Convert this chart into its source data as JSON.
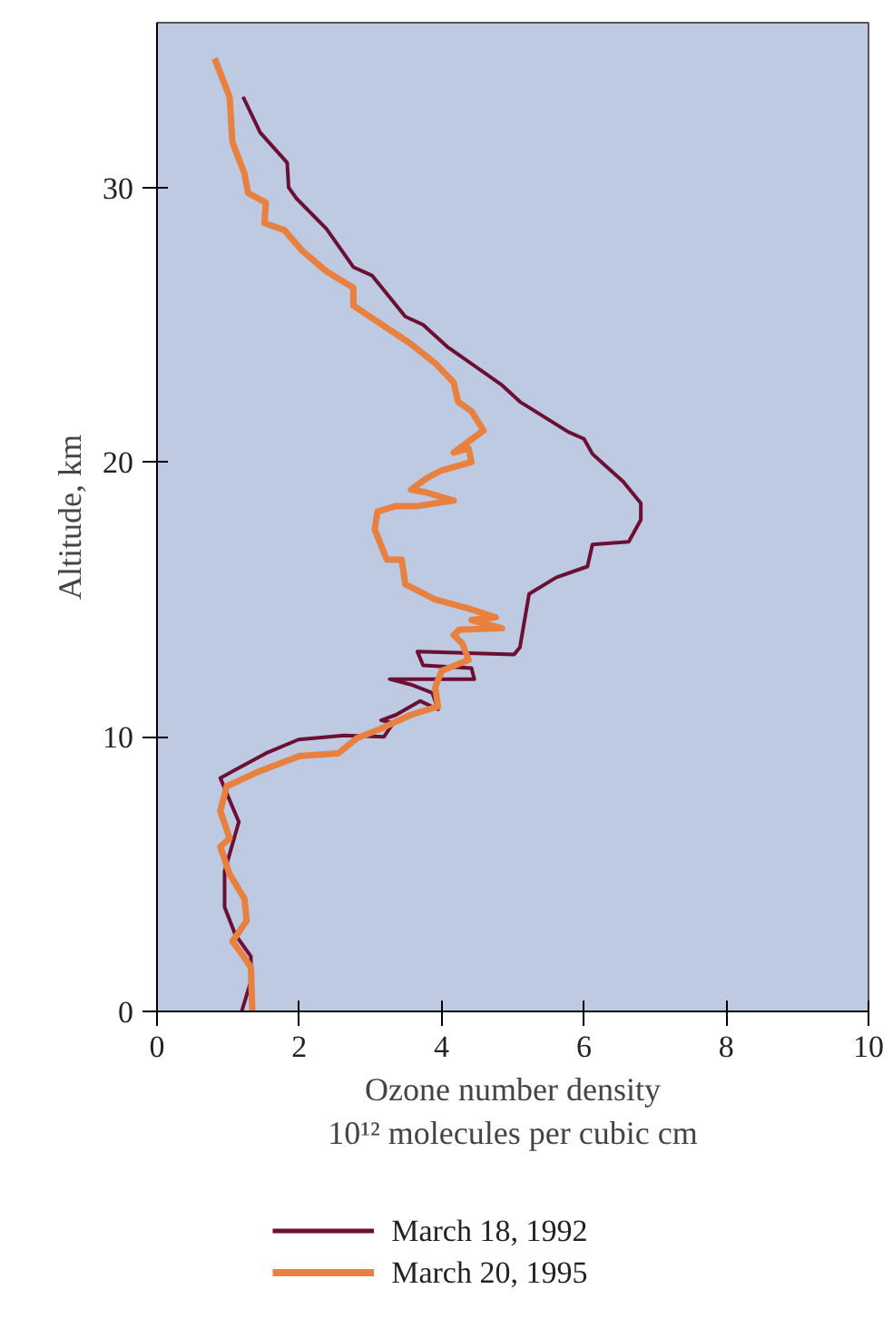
{
  "chart_data": {
    "type": "line",
    "xlabel": "Ozone number density\n10¹² molecules per cubic cm",
    "ylabel": "Altitude, km",
    "xlim": [
      0,
      10
    ],
    "ylim": [
      0,
      36
    ],
    "xticks": [
      0,
      2,
      4,
      6,
      8,
      10
    ],
    "yticks": [
      0,
      10,
      20,
      30
    ],
    "grid": false,
    "legend": "bottom",
    "marker": "none",
    "line_style": "solid",
    "series": [
      {
        "name": "March 18, 1992",
        "color": "#6b0f35",
        "x": [
          1.19,
          1.32,
          1.32,
          1.1,
          0.95,
          0.95,
          1.15,
          0.89,
          1.53,
          1.99,
          2.63,
          3.19,
          3.32,
          3.15,
          3.36,
          3.7,
          3.95,
          3.87,
          3.57,
          3.27,
          4.46,
          4.42,
          3.74,
          3.66,
          5.02,
          5.1,
          5.23,
          5.61,
          6.05,
          6.12,
          6.63,
          6.8,
          6.8,
          6.55,
          6.29,
          6.12,
          6.0,
          5.78,
          5.1,
          4.85,
          4.08,
          3.74,
          3.49,
          3.02,
          2.76,
          2.38,
          1.96,
          1.85,
          1.83,
          1.45,
          1.21
        ],
        "values": [
          0,
          1.1,
          2.0,
          2.8,
          3.8,
          5.1,
          6.9,
          8.5,
          9.4,
          9.9,
          10.05,
          10.0,
          10.5,
          10.6,
          10.8,
          11.3,
          11.0,
          11.6,
          11.9,
          12.1,
          12.1,
          12.5,
          12.6,
          13.1,
          13.0,
          13.25,
          15.2,
          15.8,
          16.2,
          17.0,
          17.1,
          17.9,
          18.5,
          19.3,
          19.9,
          20.3,
          20.85,
          21.1,
          22.2,
          22.8,
          24.2,
          25.0,
          25.3,
          26.8,
          27.1,
          28.5,
          29.6,
          30.0,
          30.9,
          32.0,
          33.3
        ]
      },
      {
        "name": "March 20, 1995",
        "color": "#e8803f",
        "x": [
          1.34,
          1.32,
          1.19,
          1.06,
          1.26,
          1.23,
          1.02,
          0.89,
          1.02,
          0.89,
          0.98,
          1.4,
          2.0,
          2.55,
          2.81,
          3.15,
          3.57,
          3.95,
          3.91,
          4.0,
          4.38,
          4.29,
          4.17,
          4.25,
          4.85,
          4.42,
          4.76,
          4.34,
          3.91,
          3.49,
          3.44,
          3.23,
          3.06,
          3.1,
          3.36,
          3.66,
          4.17,
          3.78,
          3.57,
          3.78,
          4.0,
          4.42,
          4.38,
          4.17,
          4.59,
          4.42,
          4.23,
          4.17,
          3.91,
          3.57,
          2.76,
          2.76,
          2.38,
          2.04,
          1.79,
          1.51,
          1.53,
          1.28,
          1.23,
          1.06,
          1.02,
          0.81
        ],
        "values": [
          0,
          1.6,
          2.1,
          2.55,
          3.3,
          4.1,
          5.0,
          6.0,
          6.3,
          7.3,
          8.2,
          8.7,
          9.3,
          9.4,
          9.95,
          10.3,
          10.8,
          11.1,
          11.8,
          12.4,
          12.8,
          13.4,
          13.7,
          13.9,
          13.95,
          14.25,
          14.35,
          14.7,
          15.0,
          15.55,
          16.45,
          16.45,
          17.55,
          18.2,
          18.4,
          18.4,
          18.6,
          18.9,
          19.0,
          19.4,
          19.7,
          20.0,
          20.5,
          20.35,
          21.15,
          21.85,
          22.2,
          22.9,
          23.6,
          24.3,
          25.7,
          26.35,
          26.95,
          27.7,
          28.45,
          28.7,
          29.45,
          29.8,
          30.5,
          31.65,
          33.3,
          34.7
        ]
      }
    ]
  }
}
